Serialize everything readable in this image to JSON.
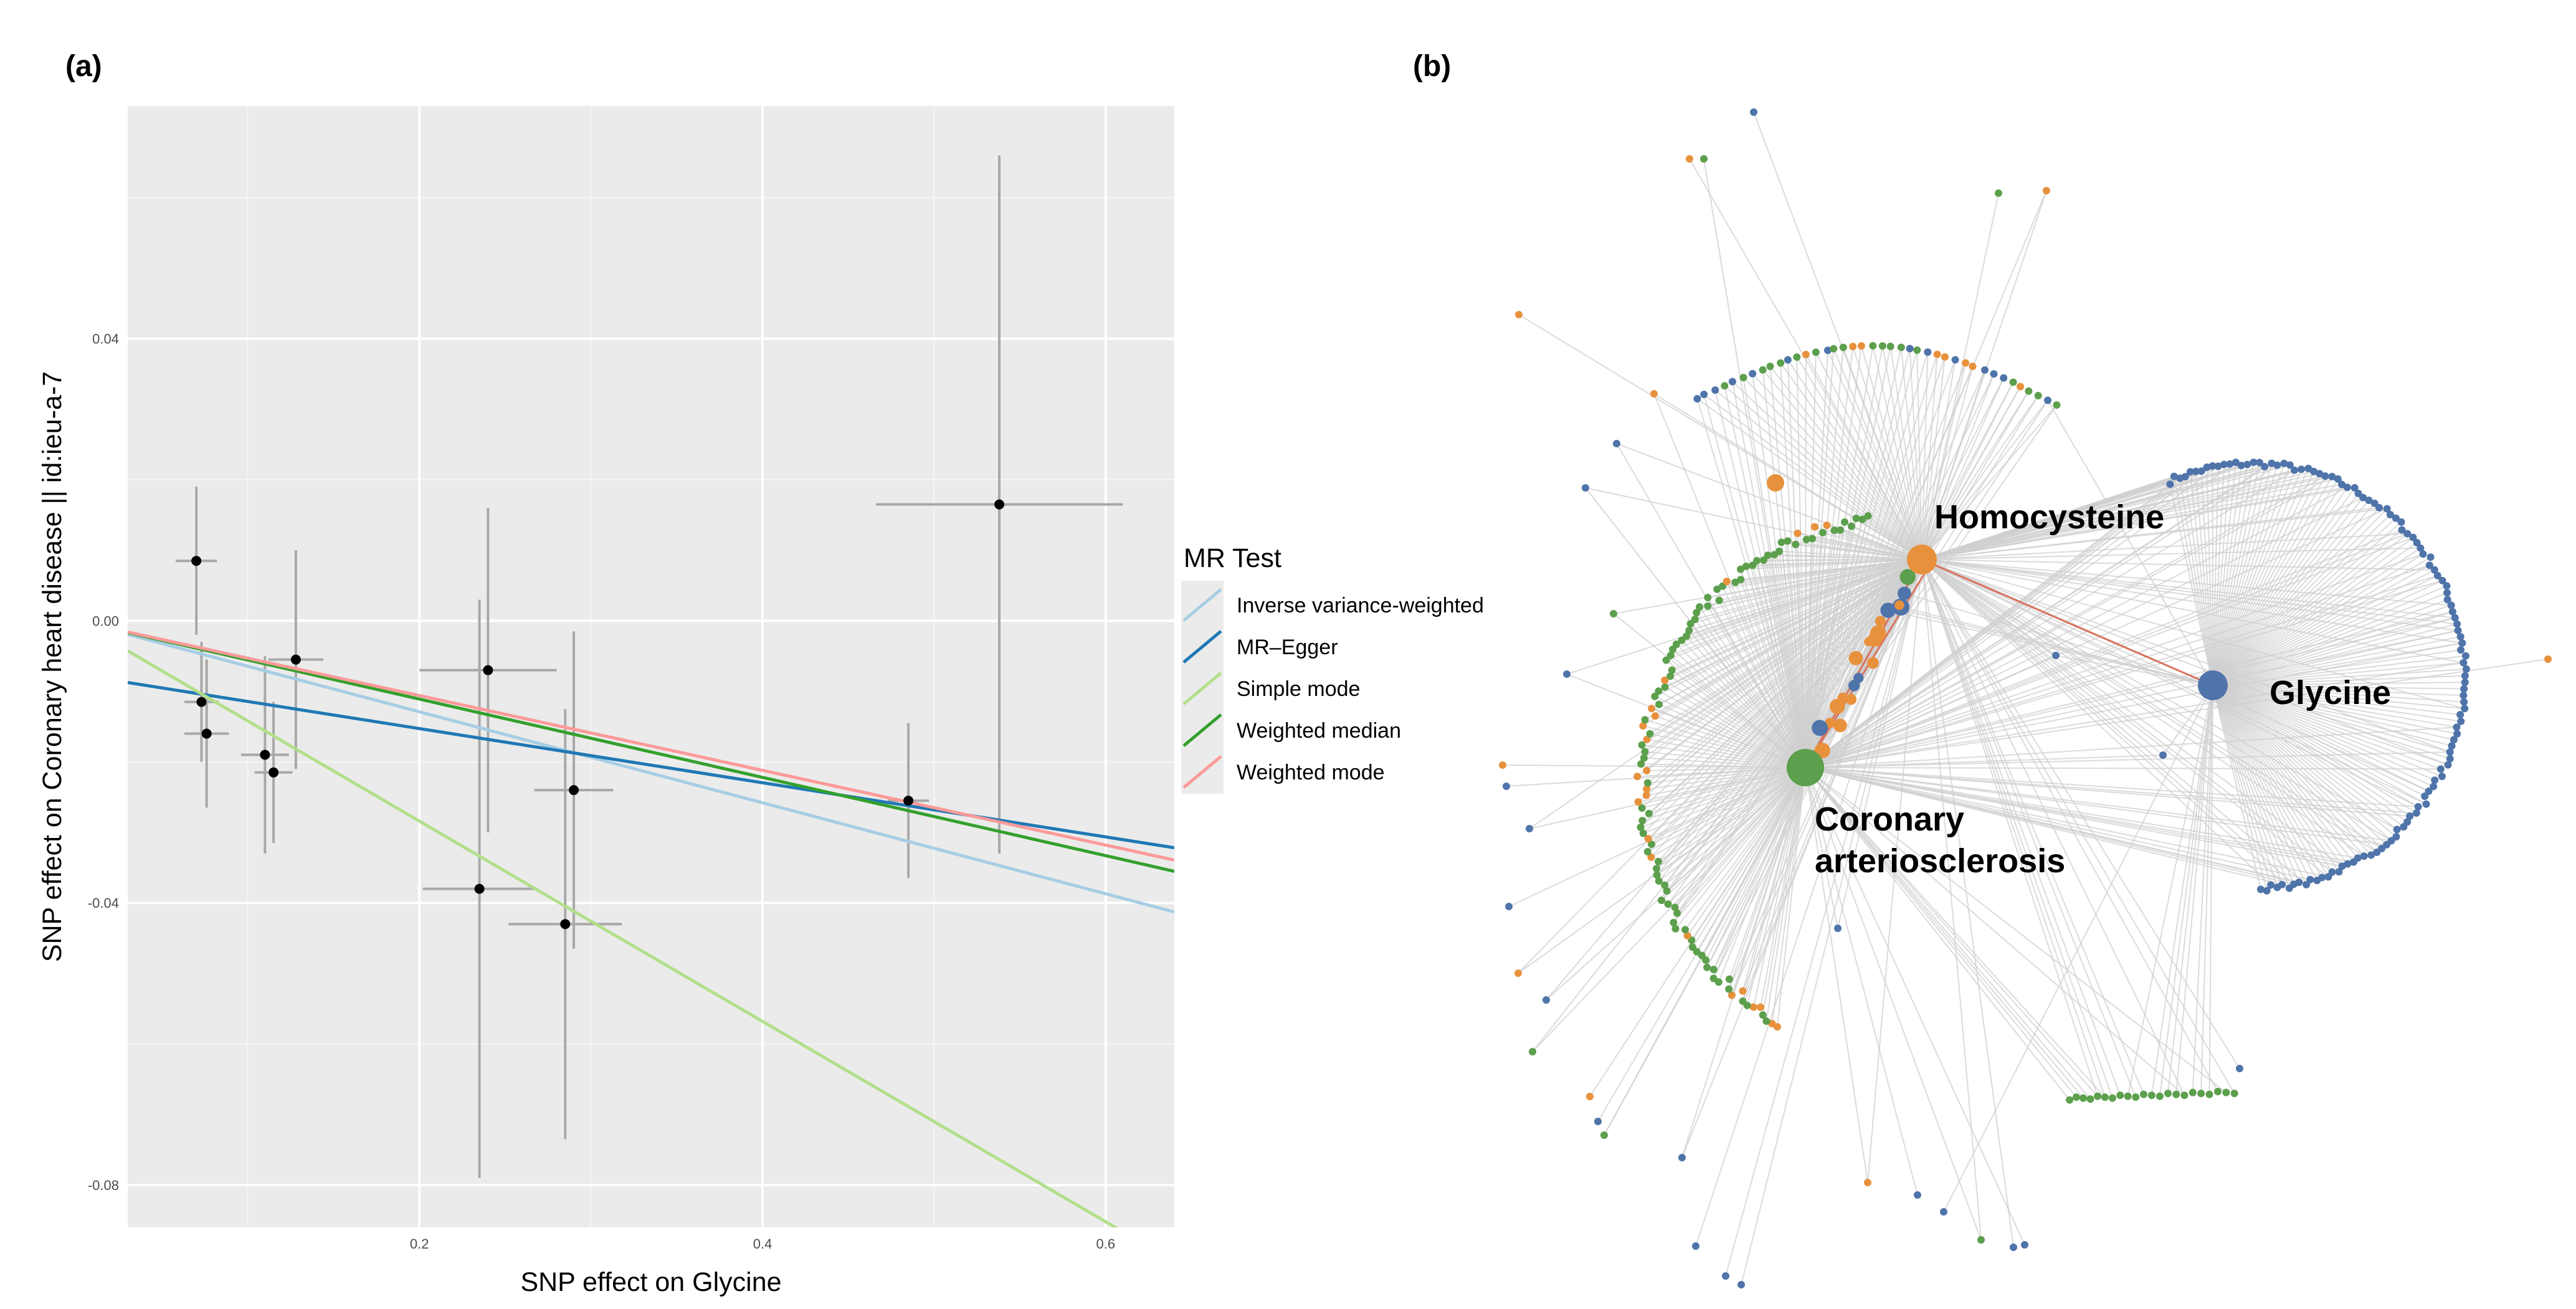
{
  "chart_data": [
    {
      "type": "scatter",
      "panel": "(a)",
      "xlabel": "SNP effect on Glycine",
      "ylabel": "SNP effect on Coronary heart disease || id:ieu-a-7",
      "xlim": [
        0.03,
        0.64
      ],
      "ylim": [
        -0.086,
        0.073
      ],
      "xticks": [
        0.2,
        0.4,
        0.6
      ],
      "xtick_labels": [
        "0.2",
        "0.4",
        "0.6"
      ],
      "yticks": [
        -0.08,
        -0.04,
        0.0,
        0.04
      ],
      "ytick_labels": [
        "-0.08",
        "-0.04",
        "0.00",
        "0.04"
      ],
      "grid": true,
      "points": [
        {
          "x": 0.07,
          "y": 0.0085,
          "xerr": 0.012,
          "yerr": 0.0105
        },
        {
          "x": 0.073,
          "y": -0.0115,
          "xerr": 0.01,
          "yerr": 0.0085
        },
        {
          "x": 0.076,
          "y": -0.016,
          "xerr": 0.013,
          "yerr": 0.0105
        },
        {
          "x": 0.11,
          "y": -0.019,
          "xerr": 0.014,
          "yerr": 0.014
        },
        {
          "x": 0.115,
          "y": -0.0215,
          "xerr": 0.011,
          "yerr": 0.01
        },
        {
          "x": 0.128,
          "y": -0.0055,
          "xerr": 0.016,
          "yerr": 0.0155
        },
        {
          "x": 0.235,
          "y": -0.038,
          "xerr": 0.033,
          "yerr": 0.041
        },
        {
          "x": 0.24,
          "y": -0.007,
          "xerr": 0.04,
          "yerr": 0.023
        },
        {
          "x": 0.285,
          "y": -0.043,
          "xerr": 0.033,
          "yerr": 0.0305
        },
        {
          "x": 0.29,
          "y": -0.024,
          "xerr": 0.023,
          "yerr": 0.0225
        },
        {
          "x": 0.485,
          "y": -0.0255,
          "xerr": 0.012,
          "yerr": 0.011
        },
        {
          "x": 0.538,
          "y": 0.0165,
          "xerr": 0.072,
          "yerr": 0.0495
        }
      ],
      "legend_title": "MR Test",
      "series": [
        {
          "name": "Inverse variance-weighted",
          "color": "#a6cee3",
          "intercept": 0.0,
          "slope": -0.0645
        },
        {
          "name": "MR–Egger",
          "color": "#1f78b4",
          "intercept": -0.0076,
          "slope": -0.0384
        },
        {
          "name": "Simple mode",
          "color": "#b2df8a",
          "intercept": 0.0,
          "slope": -0.142
        },
        {
          "name": "Weighted median",
          "color": "#33a02c",
          "intercept": 0.0,
          "slope": -0.0555
        },
        {
          "name": "Weighted mode",
          "color": "#fb9a99",
          "intercept": 0.0,
          "slope": -0.053
        }
      ]
    },
    {
      "type": "network",
      "panel": "(b)",
      "nodes": [
        {
          "name": "Homocysteine",
          "color": "#e8913c"
        },
        {
          "name": "Glycine",
          "color": "#4f74aa"
        },
        {
          "name": "Coronary arteriosclerosis",
          "color": "#5c9f4c",
          "label_lines": [
            "Coronary",
            "arteriosclerosis"
          ]
        }
      ],
      "category_colors": {
        "orange": "#e8913c",
        "blue": "#4f74aa",
        "green": "#5c9f4c",
        "edge": "#cfcfcf",
        "highlight_edge": "#d9735e"
      }
    }
  ]
}
